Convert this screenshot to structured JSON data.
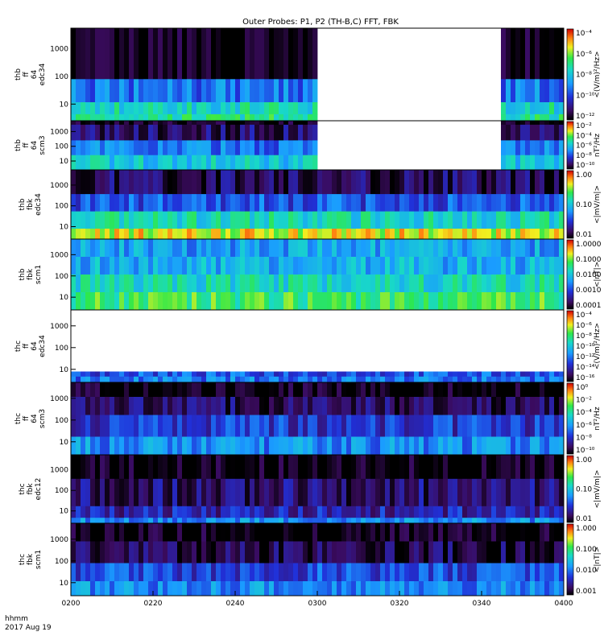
{
  "title": "Outer Probes: P1, P2 (TH-B,C) FFT, FBK",
  "footer": {
    "line1": "hhmm",
    "line2": "2017 Aug 19"
  },
  "chart_data": {
    "type": "heatmap",
    "title": "Outer Probes: P1, P2 (TH-B,C) FFT, FBK",
    "x_ticks": [
      "0200",
      "0220",
      "0240",
      "0300",
      "0320",
      "0340",
      "0400"
    ],
    "panels": [
      {
        "ylabel": [
          "thb",
          "ff",
          "64",
          "edc34"
        ],
        "y_ticks": [
          "1000",
          "100",
          "10"
        ],
        "colorbar_label": "<(V/m)²/Hz>",
        "colorbar_ticks": [
          "10⁻⁴",
          "10⁻⁶",
          "10⁻⁸",
          "10⁻¹⁰",
          "10⁻¹²"
        ],
        "data_gap": [
          0.5,
          0.87
        ]
      },
      {
        "ylabel": [
          "thb",
          "ff",
          "64",
          "scm3"
        ],
        "y_ticks": [
          "1000",
          "100",
          "10"
        ],
        "colorbar_label": "nT²/Hz",
        "colorbar_ticks": [
          "10⁻²",
          "10⁻⁴",
          "10⁻⁶",
          "10⁻⁸",
          "10⁻¹⁰"
        ],
        "data_gap": [
          0.5,
          0.87
        ]
      },
      {
        "ylabel": [
          "thb",
          "fbk",
          "edc34"
        ],
        "y_ticks": [
          "1000",
          "100",
          "10"
        ],
        "colorbar_label": "<|mV/m|>",
        "colorbar_ticks": [
          "1.00",
          "0.10",
          "0.01"
        ]
      },
      {
        "ylabel": [
          "thb",
          "fbk",
          "scm1"
        ],
        "y_ticks": [
          "1000",
          "100",
          "10"
        ],
        "colorbar_label": "<|nT|>",
        "colorbar_ticks": [
          "1.0000",
          "0.1000",
          "0.0100",
          "0.0010",
          "0.0001"
        ]
      },
      {
        "ylabel": [
          "thc",
          "ff",
          "64",
          "edc34"
        ],
        "y_ticks": [
          "1000",
          "100",
          "10"
        ],
        "colorbar_label": "<(V/m)²/Hz>",
        "colorbar_ticks": [
          "10⁻⁴",
          "10⁻⁶",
          "10⁻⁸",
          "10⁻¹⁰",
          "10⁻¹²",
          "10⁻¹⁴",
          "10⁻¹⁶"
        ]
      },
      {
        "ylabel": [
          "thc",
          "ff",
          "64",
          "scm3"
        ],
        "y_ticks": [
          "1000",
          "100",
          "10"
        ],
        "colorbar_label": "nT²/Hz",
        "colorbar_ticks": [
          "10⁰",
          "10⁻²",
          "10⁻⁴",
          "10⁻⁶",
          "10⁻⁸",
          "10⁻¹⁰"
        ]
      },
      {
        "ylabel": [
          "thc",
          "fbk",
          "edc12"
        ],
        "y_ticks": [
          "1000",
          "100",
          "10"
        ],
        "colorbar_label": "<|mV/m|>",
        "colorbar_ticks": [
          "1.00",
          "0.10",
          "0.01"
        ]
      },
      {
        "ylabel": [
          "thc",
          "fbk",
          "scm1"
        ],
        "y_ticks": [
          "1000",
          "100",
          "10"
        ],
        "colorbar_label": "<|nT|>",
        "colorbar_ticks": [
          "1.000",
          "0.100",
          "0.010",
          "0.001"
        ]
      }
    ]
  }
}
